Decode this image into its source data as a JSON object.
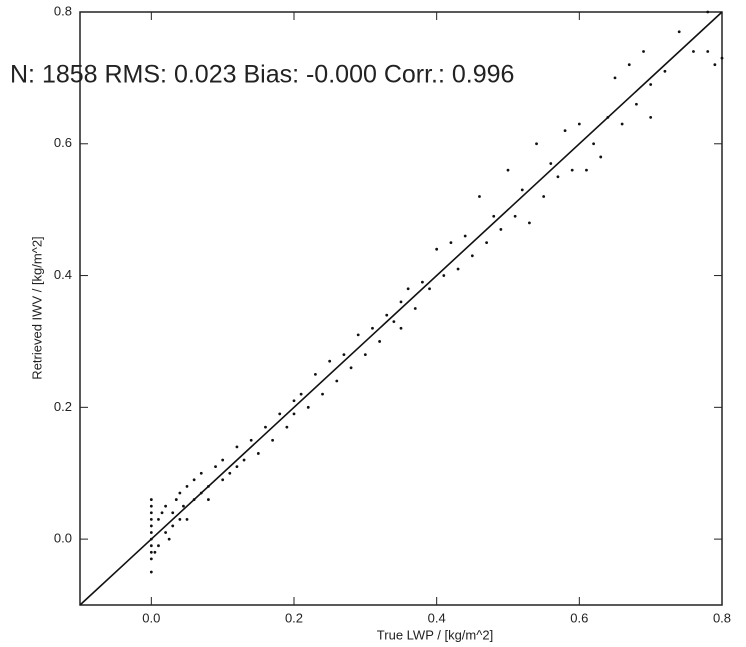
{
  "chart_data": {
    "type": "scatter",
    "annotation": "N: 1858  RMS: 0.023  Bias: -0.000  Corr.: 0.996",
    "x_label": "True LWP / [kg/m^2]",
    "y_label": "Retrieved IWV / [kg/m^2]",
    "xlim": [
      -0.1,
      0.8
    ],
    "ylim": [
      -0.1,
      0.8
    ],
    "xticks": [
      {
        "value": 0,
        "label": "0.0"
      },
      0.2,
      0.4,
      0.6,
      0.8
    ],
    "yticks": [
      {
        "value": 0,
        "label": "0.0"
      },
      0.2,
      0.4,
      0.6,
      0.8
    ],
    "color": "#111111",
    "x": [
      0,
      0,
      0,
      0,
      0,
      0,
      0,
      0,
      0,
      0,
      0,
      0.005,
      0.01,
      0.01,
      0.015,
      0.02,
      0.02,
      0.025,
      0.03,
      0.03,
      0.035,
      0.04,
      0.04,
      0.045,
      0.05,
      0.05,
      0.06,
      0.06,
      0.07,
      0.07,
      0.08,
      0.08,
      0.09,
      0.1,
      0.1,
      0.11,
      0.12,
      0.12,
      0.13,
      0.14,
      0.15,
      0.16,
      0.17,
      0.18,
      0.19,
      0.2,
      0.2,
      0.21,
      0.22,
      0.23,
      0.24,
      0.25,
      0.26,
      0.27,
      0.28,
      0.29,
      0.3,
      0.31,
      0.32,
      0.33,
      0.34,
      0.35,
      0.35,
      0.36,
      0.37,
      0.38,
      0.39,
      0.4,
      0.41,
      0.42,
      0.43,
      0.44,
      0.45,
      0.46,
      0.47,
      0.48,
      0.49,
      0.5,
      0.51,
      0.52,
      0.53,
      0.54,
      0.55,
      0.56,
      0.57,
      0.58,
      0.59,
      0.6,
      0.61,
      0.62,
      0.63,
      0.64,
      0.65,
      0.66,
      0.67,
      0.68,
      0.69,
      0.7,
      0.72,
      0.74,
      0.76,
      0.78,
      0.79,
      0.8,
      0.78,
      0.7
    ],
    "y": [
      -0.05,
      -0.03,
      -0.02,
      -0.01,
      0,
      0.01,
      0.02,
      0.03,
      0.04,
      0.05,
      0.06,
      -0.02,
      0.03,
      -0.01,
      0.04,
      0.01,
      0.05,
      0,
      0.04,
      0.02,
      0.06,
      0.03,
      0.07,
      0.05,
      0.08,
      0.03,
      0.06,
      0.09,
      0.07,
      0.1,
      0.08,
      0.06,
      0.11,
      0.09,
      0.12,
      0.1,
      0.14,
      0.11,
      0.12,
      0.15,
      0.13,
      0.17,
      0.15,
      0.19,
      0.17,
      0.21,
      0.19,
      0.22,
      0.2,
      0.25,
      0.22,
      0.27,
      0.24,
      0.28,
      0.26,
      0.31,
      0.28,
      0.32,
      0.3,
      0.34,
      0.33,
      0.36,
      0.32,
      0.38,
      0.35,
      0.39,
      0.38,
      0.44,
      0.4,
      0.45,
      0.41,
      0.46,
      0.43,
      0.52,
      0.45,
      0.49,
      0.47,
      0.56,
      0.49,
      0.53,
      0.48,
      0.6,
      0.52,
      0.57,
      0.55,
      0.62,
      0.56,
      0.63,
      0.56,
      0.6,
      0.58,
      0.64,
      0.7,
      0.63,
      0.72,
      0.66,
      0.74,
      0.69,
      0.71,
      0.77,
      0.74,
      0.74,
      0.72,
      0.73,
      0.8,
      0.64
    ]
  }
}
